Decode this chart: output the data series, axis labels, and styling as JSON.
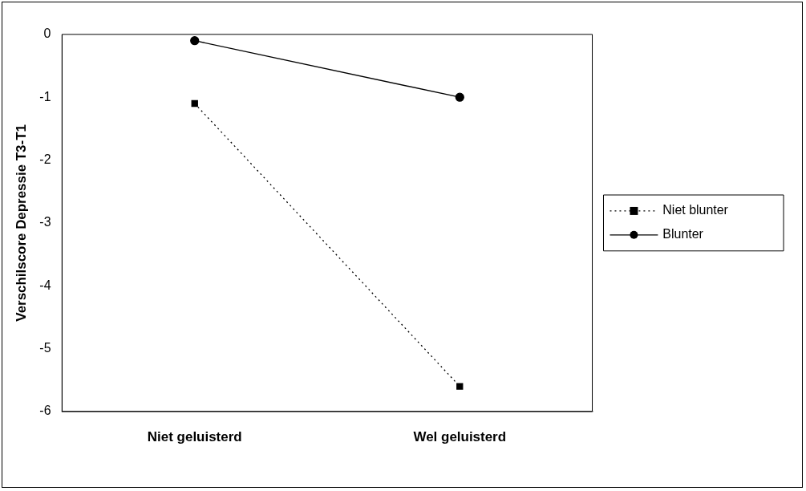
{
  "chart_data": {
    "type": "line",
    "ylabel": "Verschilscore Depressie T3-T1",
    "categories": [
      "Niet geluisterd",
      "Wel geluisterd"
    ],
    "series": [
      {
        "name": "Niet blunter",
        "color": "#000000",
        "values": [
          -1.1,
          -5.6
        ],
        "marker": "square",
        "line_style": "dotted"
      },
      {
        "name": "Blunter",
        "color": "#000000",
        "values": [
          -0.1,
          -1.0
        ],
        "marker": "circle",
        "line_style": "solid"
      }
    ],
    "ylim": [
      -6,
      0
    ],
    "yticks": [
      -6,
      -5,
      -4,
      -3,
      -2,
      -1,
      0
    ],
    "grid": false,
    "legend": "right"
  }
}
